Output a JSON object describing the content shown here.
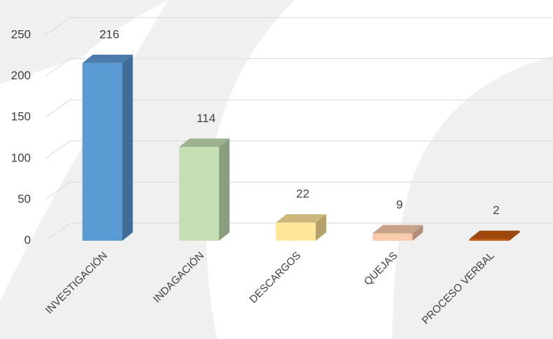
{
  "chart_data": {
    "type": "bar",
    "categories": [
      "INVESTIGACIÓN",
      "INDAGACIÓN",
      "DESCARGOS",
      "QUEJAS",
      "PROCESO VERBAL"
    ],
    "values": [
      216,
      114,
      22,
      9,
      2
    ],
    "colors": [
      "#5b9bd5",
      "#c5e0b4",
      "#ffe699",
      "#f8cbad",
      "#c55a11"
    ],
    "ylim": [
      0,
      250
    ],
    "yticks": [
      0,
      50,
      100,
      150,
      200,
      250
    ],
    "grid": true
  }
}
